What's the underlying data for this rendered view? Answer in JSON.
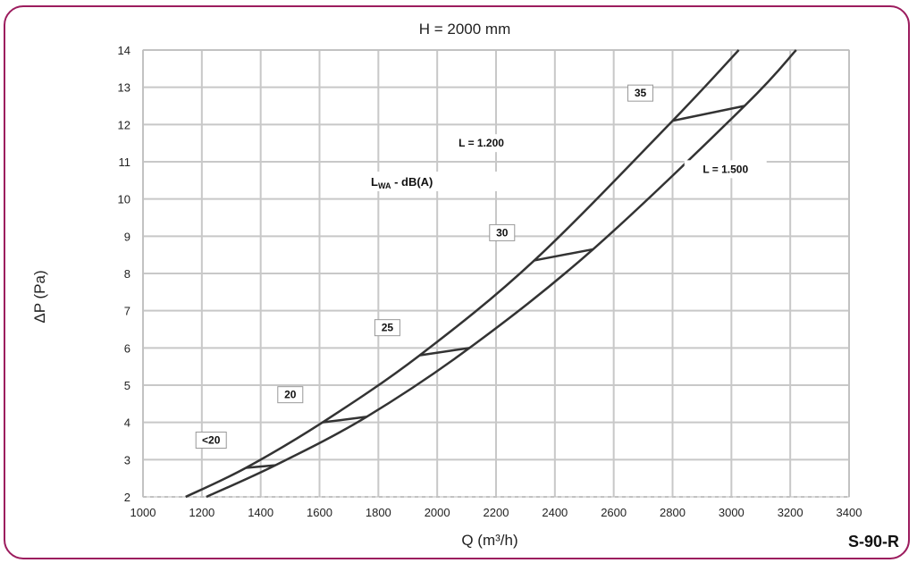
{
  "chart_data": {
    "type": "line",
    "title": "H = 2000 mm",
    "xlabel": "Q (m³/h)",
    "ylabel": "ΔP (Pa)",
    "xlim": [
      1000,
      3400
    ],
    "ylim": [
      2,
      14
    ],
    "xticks": [
      1000,
      1200,
      1400,
      1600,
      1800,
      2000,
      2200,
      2400,
      2600,
      2800,
      3000,
      3200,
      3400
    ],
    "yticks": [
      2,
      3,
      4,
      5,
      6,
      7,
      8,
      9,
      10,
      11,
      12,
      13,
      14
    ],
    "grid": true,
    "series": [
      {
        "name": "L = 1.200",
        "x": [
          1145,
          1350,
          1610,
          1940,
          2330,
          2800,
          3025
        ],
        "y": [
          2.0,
          2.78,
          4.0,
          5.8,
          8.35,
          12.1,
          14.0
        ]
      },
      {
        "name": "L = 1.500",
        "x": [
          1215,
          1450,
          1760,
          2110,
          2530,
          3045,
          3220
        ],
        "y": [
          2.0,
          2.85,
          4.15,
          6.0,
          8.65,
          12.5,
          14.0
        ]
      }
    ],
    "sound_level_title_main": "L",
    "sound_level_title_sub": "WA",
    "sound_level_title_rest": " - dB(A)",
    "sound_levels": [
      {
        "label": "<20",
        "x1": 1350,
        "y1": 2.78,
        "x2": 1450,
        "y2": 2.85
      },
      {
        "label": "20",
        "x1": 1610,
        "y1": 4.0,
        "x2": 1760,
        "y2": 4.15
      },
      {
        "label": "25",
        "x1": 1940,
        "y1": 5.8,
        "x2": 2110,
        "y2": 6.0
      },
      {
        "label": "30",
        "x1": 2330,
        "y1": 8.35,
        "x2": 2530,
        "y2": 8.65
      },
      {
        "label": "35",
        "x1": 2800,
        "y1": 12.1,
        "x2": 3045,
        "y2": 12.5
      }
    ]
  },
  "model": "S-90-R",
  "colors": {
    "frame": "#9c1c5e",
    "grid": "#c8c8c8",
    "curve": "#333333"
  }
}
